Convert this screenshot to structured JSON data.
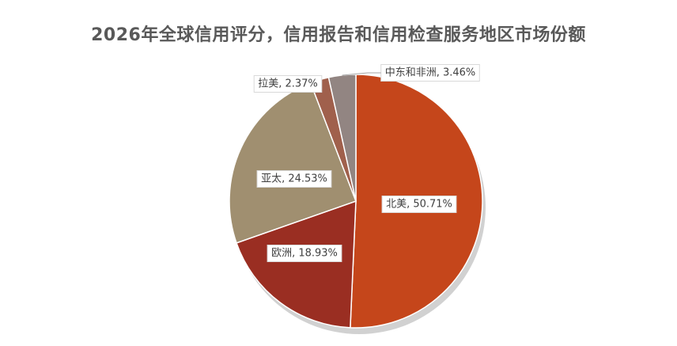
{
  "chart_data": {
    "type": "pie",
    "title": "2026年全球信用评分，信用报告和信用检查服务地区市场份额",
    "slices": [
      {
        "label": "北美",
        "value": 50.71,
        "value_text": "50.71%",
        "color": "#C5461B"
      },
      {
        "label": "欧洲",
        "value": 18.93,
        "value_text": "18.93%",
        "color": "#9A2E22"
      },
      {
        "label": "亚太",
        "value": 24.53,
        "value_text": "24.53%",
        "color": "#A08F70"
      },
      {
        "label": "拉美",
        "value": 2.37,
        "value_text": "2.37%",
        "color": "#A0604C"
      },
      {
        "label": "中东和非洲",
        "value": 3.46,
        "value_text": "3.46%",
        "color": "#928582"
      }
    ],
    "start_angle_deg": 0,
    "direction": "clockwise",
    "legend": "none"
  }
}
